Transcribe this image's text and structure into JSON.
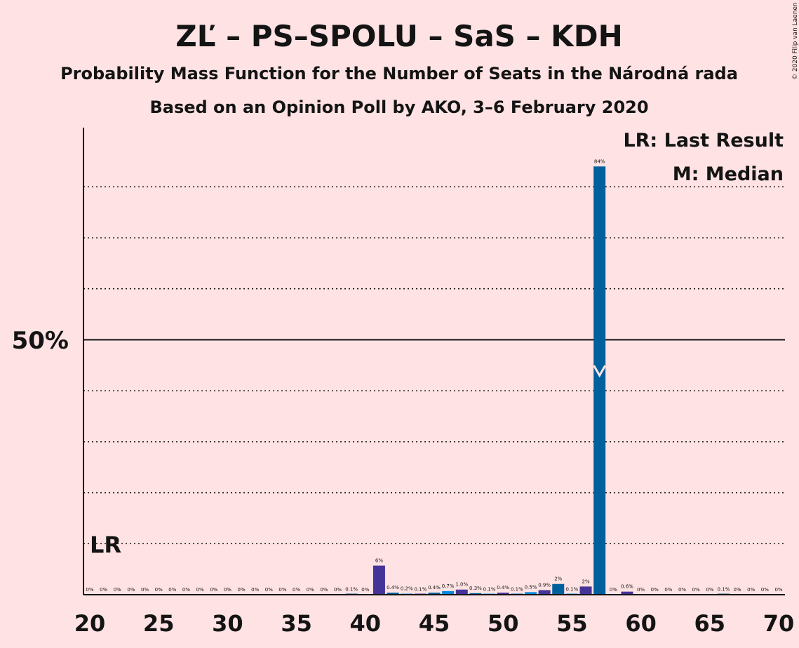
{
  "chart_data": {
    "type": "bar",
    "title": "ZĽ – PS–SPOLU – SaS – KDH",
    "subtitle1": "Probability Mass Function for the Number of Seats in the Národná rada",
    "subtitle2": "Based on an Opinion Poll by AKO, 3–6 February 2020",
    "copyright": "© 2020 Filip van Laenen",
    "legend": {
      "lr": "LR: Last Result",
      "median": "M: Median",
      "position": "top-right"
    },
    "ylabel_tick": "50%",
    "ylim": [
      0,
      90
    ],
    "xlim": [
      20,
      70
    ],
    "x_ticks": [
      "20",
      "25",
      "30",
      "35",
      "40",
      "45",
      "50",
      "55",
      "60",
      "65",
      "70"
    ],
    "last_result": {
      "seat": 21,
      "label": "LR"
    },
    "median": {
      "seat": 57,
      "label": "M"
    },
    "grid": "dotted every 10%, solid at 50%",
    "colors": {
      "background": "#FFE2E3",
      "seq": [
        "#453497",
        "#00609E",
        "#0087DC"
      ],
      "axis": "#141414"
    },
    "seats": [
      20,
      21,
      22,
      23,
      24,
      25,
      26,
      27,
      28,
      29,
      30,
      31,
      32,
      33,
      34,
      35,
      36,
      37,
      38,
      39,
      40,
      41,
      42,
      43,
      44,
      45,
      46,
      47,
      48,
      49,
      50,
      51,
      52,
      53,
      54,
      55,
      56,
      57,
      58,
      59,
      60,
      61,
      62,
      63,
      64,
      65,
      66,
      67,
      68,
      69,
      70
    ],
    "values": [
      0,
      0,
      0,
      0,
      0,
      0,
      0,
      0,
      0,
      0,
      0,
      0,
      0,
      0,
      0,
      0,
      0,
      0,
      0,
      0.1,
      0,
      5.7,
      0.4,
      0.2,
      0.1,
      0.4,
      0.7,
      1.0,
      0.3,
      0.1,
      0.4,
      0.1,
      0.5,
      0.9,
      2.1,
      0.1,
      1.6,
      84,
      0,
      0.6,
      0,
      0,
      0,
      0,
      0,
      0,
      0.1,
      0,
      0,
      0,
      0
    ],
    "labels": [
      "0%",
      "0%",
      "0%",
      "0%",
      "0%",
      "0%",
      "0%",
      "0%",
      "0%",
      "0%",
      "0%",
      "0%",
      "0%",
      "0%",
      "0%",
      "0%",
      "0%",
      "0%",
      "0%",
      "0.1%",
      "0%",
      "6%",
      "0.4%",
      "0.2%",
      "0.1%",
      "0.4%",
      "0.7%",
      "1.0%",
      "0.3%",
      "0.1%",
      "0.4%",
      "0.1%",
      "0.5%",
      "0.9%",
      "2%",
      "0.1%",
      "2%",
      "84%",
      "0%",
      "0.6%",
      "0%",
      "0%",
      "0%",
      "0%",
      "0%",
      "0%",
      "0.1%",
      "0%",
      "0%",
      "0%",
      "0%"
    ]
  }
}
